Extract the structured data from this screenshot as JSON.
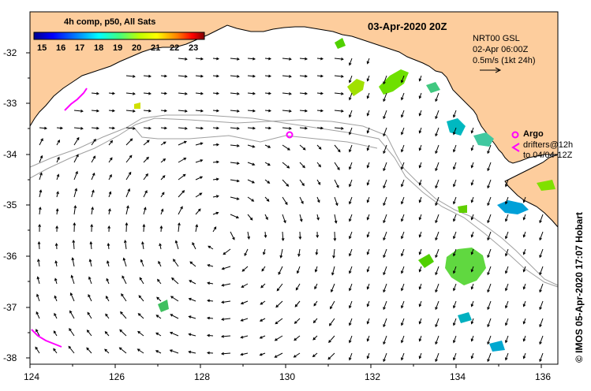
{
  "title": "03-Apr-2020 20Z",
  "colorbar": {
    "title": "4h comp, p50, All Sats",
    "ticks": [
      "15",
      "16",
      "17",
      "18",
      "19",
      "20",
      "21",
      "22",
      "23"
    ],
    "colors": [
      "#00008f",
      "#0000ff",
      "#0080ff",
      "#00ffff",
      "#40ff80",
      "#c0ff00",
      "#ffff00",
      "#ff8000",
      "#ff0000",
      "#800000"
    ]
  },
  "altimetry": {
    "line1": "NRT00 GSL",
    "line2": "02-Apr 06:00Z",
    "line3": "0.5m/s (1kt 24h)"
  },
  "argo": {
    "label": "Argo",
    "line2": "drifters@12h",
    "line3": "to 04/04-12Z"
  },
  "credit": "© IMOS 05-Apr-2020 17:07 Hobart",
  "axes": {
    "lon_range": [
      124,
      136.5
    ],
    "lat_range": [
      -38.1,
      -31.4
    ],
    "x_ticks": [
      "124",
      "126",
      "128",
      "130",
      "132",
      "134",
      "136"
    ],
    "y_ticks": [
      "-32",
      "-33",
      "-34",
      "-35",
      "-36",
      "-37",
      "-38"
    ]
  },
  "colors": {
    "land": "#fdcd9d",
    "sea": "#ffffff",
    "bathy": "#a0a0a0",
    "argo": "#ff00ff"
  }
}
